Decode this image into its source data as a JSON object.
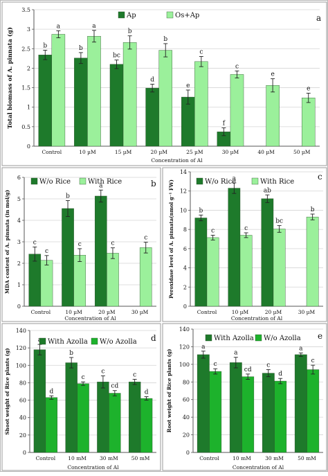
{
  "colors": {
    "dark_green": "#1e7a2b",
    "light_green": "#9bf09b",
    "mid_green": "#1db22c",
    "axis": "#555555"
  },
  "chart_data": [
    {
      "id": "a",
      "type": "bar",
      "panel_label": "a",
      "title": "",
      "ylabel": "Total biomass of A. pinnata (g)",
      "xlabel": "Concentration of Al",
      "ylim": [
        0,
        3.5
      ],
      "yticks": [
        "0",
        "0.5",
        "1",
        "1.5",
        "2",
        "2.5",
        "3",
        "3.5"
      ],
      "grid": true,
      "legend_position": "top",
      "categories": [
        "Control",
        "10 µM",
        "15 µM",
        "20 µM",
        "25 µM",
        "30 µM",
        "40 µM",
        "50 µM"
      ],
      "series": [
        {
          "name": "Ap",
          "color": "dark",
          "values": [
            2.34,
            2.26,
            2.1,
            1.49,
            1.26,
            0.37,
            null,
            null
          ],
          "errors": [
            0.12,
            0.14,
            0.11,
            0.1,
            0.18,
            0.1,
            null,
            null
          ],
          "labels": [
            "b",
            "b",
            "bc",
            "d",
            "e",
            "f",
            "",
            ""
          ]
        },
        {
          "name": "Os+Ap",
          "color": "light",
          "values": [
            2.87,
            2.82,
            2.66,
            2.46,
            2.17,
            1.84,
            1.56,
            1.24
          ],
          "errors": [
            0.09,
            0.15,
            0.17,
            0.17,
            0.13,
            0.09,
            0.17,
            0.12
          ],
          "labels": [
            "a",
            "a",
            "b",
            "b",
            "c",
            "c",
            "e",
            "e"
          ]
        }
      ]
    },
    {
      "id": "b",
      "type": "bar",
      "panel_label": "b",
      "title": "",
      "ylabel": "MDA content of A. pinnata (in mol/g)",
      "xlabel": "Concentration of Al",
      "ylim": [
        0,
        6
      ],
      "yticks": [
        "0",
        "1",
        "2",
        "3",
        "4",
        "5",
        "6"
      ],
      "grid": true,
      "legend_position": "top",
      "categories": [
        "Control",
        "10 µM",
        "20 µM",
        "30 µM"
      ],
      "series": [
        {
          "name": "W/o Rice",
          "color": "dark",
          "values": [
            2.43,
            4.55,
            5.13,
            null
          ],
          "errors": [
            0.33,
            0.37,
            0.28,
            null
          ],
          "labels": [
            "c",
            "b",
            "a",
            ""
          ]
        },
        {
          "name": "With Rice",
          "color": "light",
          "values": [
            2.14,
            2.38,
            2.47,
            2.73
          ],
          "errors": [
            0.22,
            0.3,
            0.25,
            0.25
          ],
          "labels": [
            "c",
            "c",
            "c",
            "c"
          ]
        }
      ]
    },
    {
      "id": "c",
      "type": "bar",
      "panel_label": "c",
      "title": "",
      "ylabel": "Peroxidase level of A. pinnata(nmol g⁻¹ FW)",
      "xlabel": "Concentration of Al",
      "ylim": [
        0,
        14
      ],
      "yticks": [
        "0",
        "2",
        "4",
        "6",
        "8",
        "10",
        "12",
        "14"
      ],
      "grid": true,
      "legend_position": "top",
      "categories": [
        "Control",
        "10 µM",
        "20 µM",
        "30 µM"
      ],
      "series": [
        {
          "name": "W/o Rice",
          "color": "dark",
          "values": [
            9.2,
            12.3,
            11.2,
            null
          ],
          "errors": [
            0.3,
            0.55,
            0.4,
            null
          ],
          "labels": [
            "b",
            "a",
            "ab",
            ""
          ]
        },
        {
          "name": "With Rice",
          "color": "light",
          "values": [
            7.15,
            7.4,
            8.05,
            9.3
          ],
          "errors": [
            0.25,
            0.25,
            0.35,
            0.3
          ],
          "labels": [
            "c",
            "c",
            "bc",
            "b"
          ]
        }
      ]
    },
    {
      "id": "d",
      "type": "bar",
      "panel_label": "d",
      "title": "",
      "ylabel": "Shoot weight of Rice plants (g)",
      "xlabel": "Concentration of Al",
      "ylim": [
        0,
        140
      ],
      "yticks": [
        "0",
        "20",
        "40",
        "60",
        "80",
        "100",
        "120",
        "140"
      ],
      "grid": true,
      "legend_position": "top",
      "categories": [
        "Control",
        "10 mM",
        "30 mM",
        "50 mM"
      ],
      "series": [
        {
          "name": "With Azolla",
          "color": "dark",
          "values": [
            118,
            103,
            81,
            81
          ],
          "errors": [
            6,
            6,
            7,
            3
          ],
          "labels": [
            "a",
            "b",
            "c",
            "c"
          ]
        },
        {
          "name": "W/o Azolla",
          "color": "mid",
          "values": [
            63,
            79,
            68,
            62
          ],
          "errors": [
            2,
            2,
            3,
            2
          ],
          "labels": [
            "d",
            "c",
            "cd",
            "d"
          ]
        }
      ]
    },
    {
      "id": "e",
      "type": "bar",
      "panel_label": "e",
      "title": "",
      "ylabel": "Root weight of Rice plants (g)",
      "xlabel": "Concentration of Al",
      "ylim": [
        0,
        140
      ],
      "yticks": [
        "0",
        "20",
        "40",
        "60",
        "80",
        "100",
        "120",
        "140"
      ],
      "grid": true,
      "legend_position": "top",
      "categories": [
        "Control",
        "10 mM",
        "30 mM",
        "50 mM"
      ],
      "series": [
        {
          "name": "With Azolla",
          "color": "dark",
          "values": [
            111,
            102,
            90,
            111
          ],
          "errors": [
            4,
            6,
            4,
            2
          ],
          "labels": [
            "a",
            "a",
            "c",
            "a"
          ]
        },
        {
          "name": "W/o Azolla",
          "color": "mid",
          "values": [
            92,
            86,
            81,
            94
          ],
          "errors": [
            3,
            3,
            3,
            5
          ],
          "labels": [
            "c",
            "cd",
            "d",
            "c"
          ]
        }
      ]
    }
  ]
}
